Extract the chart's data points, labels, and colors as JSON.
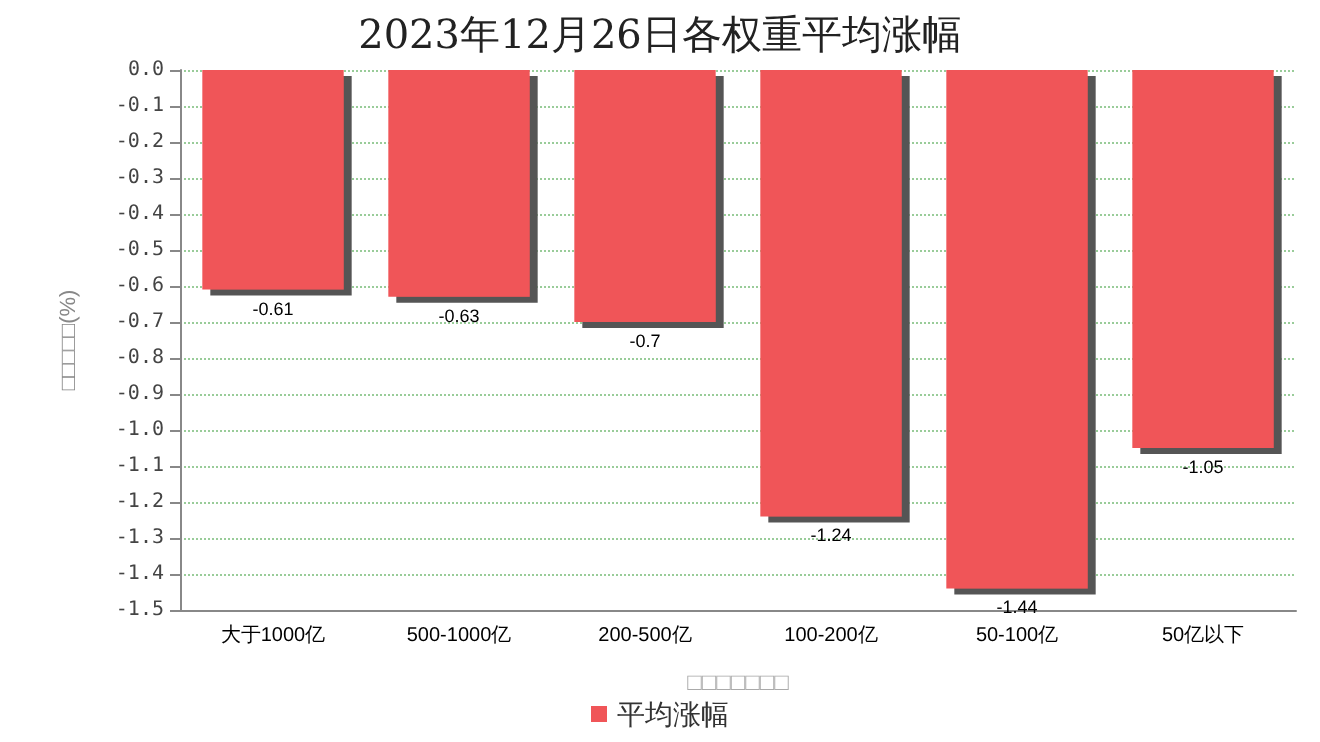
{
  "chart_data": {
    "type": "bar",
    "title": "2023年12月26日各权重平均涨幅",
    "xlabel": "□□□□□□□",
    "ylabel": "□□□□□(%)",
    "categories": [
      "大于1000亿",
      "500-1000亿",
      "200-500亿",
      "100-200亿",
      "50-100亿",
      "50亿以下"
    ],
    "series": [
      {
        "name": "平均涨幅",
        "color": "#f05558",
        "values": [
          -0.61,
          -0.63,
          -0.7,
          -1.24,
          -1.44,
          -1.05
        ]
      }
    ],
    "ylim": [
      -1.5,
      0
    ],
    "yticks": [
      {
        "value": -1.5,
        "label": "-1.5"
      },
      -1.4,
      -1.3,
      -1.2,
      -1.1,
      {
        "value": -1,
        "label": "-1.0"
      },
      -0.9,
      -0.8,
      -0.7,
      -0.6,
      -0.5,
      -0.4,
      -0.3,
      -0.2,
      -0.1,
      {
        "value": 0,
        "label": "0.0"
      }
    ],
    "data_labels": true,
    "grid": "y",
    "legend": "bottom"
  }
}
